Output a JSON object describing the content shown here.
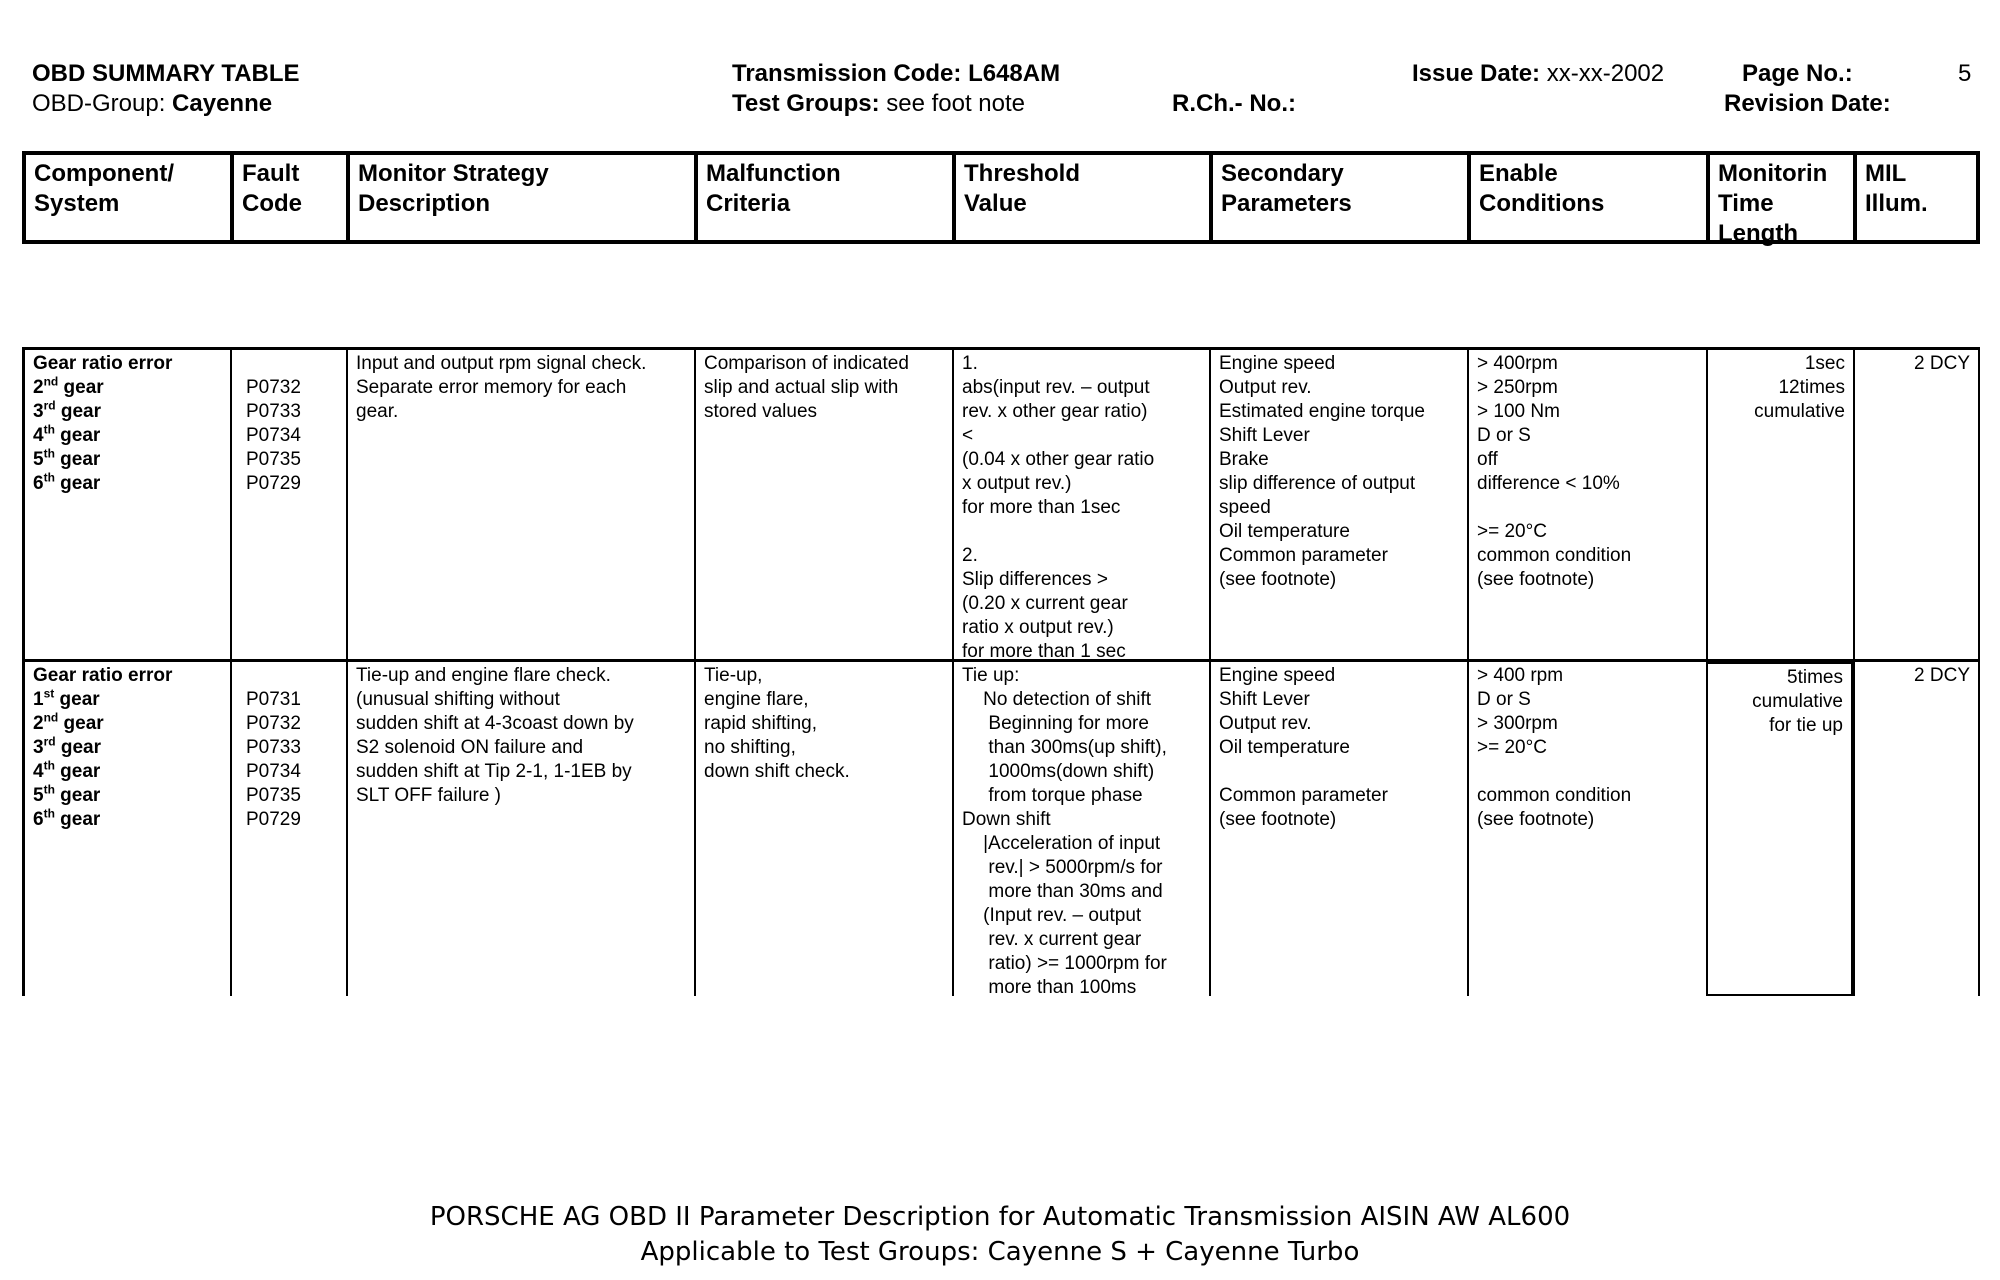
{
  "header": {
    "title": "OBD SUMMARY TABLE",
    "group_label": "OBD-Group:",
    "group_value": "Cayenne",
    "trans_label": "Transmission Code:",
    "trans_value": "L648AM",
    "testgroups_label": "Test Groups:",
    "testgroups_value": "see foot note",
    "rch_label": "R.Ch.- No.:",
    "issue_label": "Issue Date:",
    "issue_value": "xx-xx-2002",
    "page_label": "Page No.:",
    "page_value": "5",
    "revision_label": "Revision Date:"
  },
  "columns": [
    "Component/\nSystem",
    "Fault\nCode",
    "Monitor Strategy\nDescription",
    "Malfunction\nCriteria",
    "Threshold\nValue",
    "Secondary\nParameters",
    "Enable\nConditions",
    "Monitorin\nTime\nLength",
    "MIL\nIllum."
  ],
  "rows": [
    {
      "component_title": "Gear ratio error",
      "gears": [
        {
          "n": "2",
          "sup": "nd",
          "label": "gear"
        },
        {
          "n": "3",
          "sup": "rd",
          "label": "gear"
        },
        {
          "n": "4",
          "sup": "th",
          "label": "gear"
        },
        {
          "n": "5",
          "sup": "th",
          "label": "gear"
        },
        {
          "n": "6",
          "sup": "th",
          "label": "gear"
        }
      ],
      "fault_codes": "\nP0732\nP0733\nP0734\nP0735\nP0729",
      "monitor": "Input and output rpm signal check.\nSeparate error memory for each\ngear.",
      "malfunction": "Comparison of indicated\nslip and actual slip with\nstored values",
      "threshold": "1.\nabs(input rev. – output\nrev. x other gear ratio)\n<\n(0.04 x other gear ratio\nx output rev.)\nfor more than 1sec\n\n2.\nSlip differences >\n(0.20 x current gear\nratio x output rev.)\nfor more than 1 sec",
      "secondary": "Engine speed\nOutput rev.\nEstimated engine torque\nShift Lever\nBrake\nslip difference of output\nspeed\nOil temperature\nCommon parameter\n(see footnote)",
      "enable": "> 400rpm\n> 250rpm\n> 100 Nm\nD or S\noff\ndifference < 10%\n\n>= 20°C\ncommon condition\n(see footnote)",
      "time": "1sec\n12times\ncumulative",
      "mil": "2 DCY"
    },
    {
      "component_title": "Gear ratio error",
      "gears": [
        {
          "n": "1",
          "sup": "st",
          "label": "gear"
        },
        {
          "n": "2",
          "sup": "nd",
          "label": "gear"
        },
        {
          "n": "3",
          "sup": "rd",
          "label": "gear"
        },
        {
          "n": "4",
          "sup": "th",
          "label": "gear"
        },
        {
          "n": "5",
          "sup": "th",
          "label": "gear"
        },
        {
          "n": "6",
          "sup": "th",
          "label": "gear"
        }
      ],
      "fault_codes": "\nP0731\nP0732\nP0733\nP0734\nP0735\nP0729",
      "monitor": "Tie-up and engine flare check.\n(unusual shifting without\nsudden shift at 4-3coast down by\nS2 solenoid ON failure and\nsudden shift at Tip 2-1, 1-1EB by\nSLT OFF failure )",
      "malfunction": "Tie-up,\nengine flare,\nrapid shifting,\nno shifting,\ndown shift check.",
      "threshold": "Tie up:\n    No detection of shift\n     Beginning for more\n     than 300ms(up shift),\n     1000ms(down shift)\n     from torque phase\nDown shift\n    |Acceleration of input\n     rev.| > 5000rpm/s for\n     more than 30ms and\n    (Input rev. – output\n     rev. x current gear\n     ratio) >= 1000rpm for\n     more than 100ms",
      "secondary": "Engine speed\nShift Lever\nOutput rev.\nOil temperature\n\nCommon parameter\n(see footnote)",
      "enable": "> 400 rpm\nD or S\n> 300rpm\n>= 20°C\n\ncommon condition\n(see footnote)",
      "time": "5times\ncumulative\nfor tie up",
      "mil": "2 DCY"
    }
  ],
  "footer": {
    "line1": "PORSCHE AG OBD II Parameter Description for Automatic Transmission AISIN AW AL600",
    "line2": "Applicable to Test Groups: Cayenne S + Cayenne Turbo"
  }
}
